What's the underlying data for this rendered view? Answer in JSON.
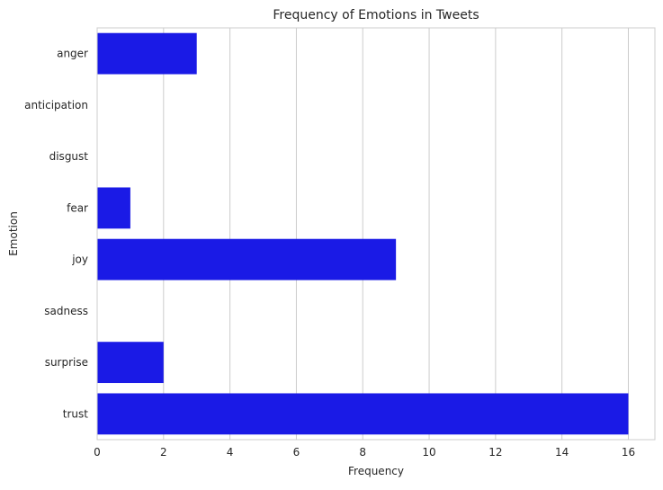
{
  "chart_data": {
    "type": "bar",
    "orientation": "horizontal",
    "title": "Frequency of Emotions in Tweets",
    "xlabel": "Frequency",
    "ylabel": "Emotion",
    "categories": [
      "anger",
      "anticipation",
      "disgust",
      "fear",
      "joy",
      "sadness",
      "surprise",
      "trust"
    ],
    "values": [
      3,
      0,
      0,
      1,
      9,
      0,
      2,
      16
    ],
    "xlim": [
      0,
      16.8
    ],
    "xticks": [
      0,
      2,
      4,
      6,
      8,
      10,
      12,
      14,
      16
    ],
    "grid": "vertical",
    "bar_color": "#1a1ae6",
    "grid_color": "#cccccc",
    "spine_color": "#cccccc"
  }
}
